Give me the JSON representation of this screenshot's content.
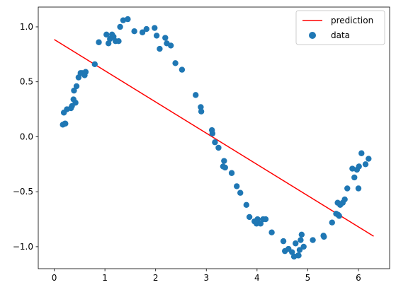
{
  "chart_data": {
    "type": "scatter",
    "title": "",
    "xlabel": "",
    "ylabel": "",
    "xlim": [
      -0.315,
      6.615
    ],
    "ylim": [
      -1.2,
      1.18
    ],
    "x_ticks": [
      0,
      1,
      2,
      3,
      4,
      5,
      6
    ],
    "x_tick_labels": [
      "0",
      "1",
      "2",
      "3",
      "4",
      "5",
      "6"
    ],
    "y_ticks": [
      1.0,
      0.5,
      0.0,
      -0.5,
      -1.0
    ],
    "y_tick_labels": [
      "1.0",
      "0.5",
      "0.0",
      "−0.5",
      "−1.0"
    ],
    "grid": false,
    "legend_position": "top-right",
    "series": [
      {
        "name": "prediction",
        "kind": "line",
        "color": "#ff0000",
        "x": [
          0.0,
          6.3
        ],
        "y": [
          0.885,
          -0.905
        ]
      },
      {
        "name": "data",
        "kind": "scatter",
        "color": "#1f77b4",
        "x": [
          0.17,
          0.19,
          0.21,
          0.22,
          0.25,
          0.33,
          0.35,
          0.38,
          0.39,
          0.42,
          0.44,
          0.48,
          0.52,
          0.55,
          0.6,
          0.62,
          0.8,
          0.88,
          1.03,
          1.07,
          1.1,
          1.14,
          1.17,
          1.21,
          1.27,
          1.3,
          1.36,
          1.45,
          1.58,
          1.74,
          1.82,
          1.98,
          2.02,
          2.08,
          2.19,
          2.22,
          2.3,
          2.39,
          2.52,
          2.79,
          2.89,
          2.9,
          3.11,
          3.12,
          3.17,
          3.24,
          3.33,
          3.35,
          3.37,
          3.5,
          3.6,
          3.67,
          3.79,
          3.85,
          3.95,
          3.99,
          4.01,
          4.07,
          4.12,
          4.17,
          4.29,
          4.52,
          4.55,
          4.62,
          4.69,
          4.73,
          4.76,
          4.81,
          4.82,
          4.84,
          4.86,
          4.88,
          4.92,
          5.1,
          5.31,
          5.32,
          5.48,
          5.56,
          5.59,
          5.6,
          5.62,
          5.64,
          5.69,
          5.73,
          5.78,
          5.88,
          5.92,
          5.97,
          6.0,
          6.01,
          6.06,
          6.14,
          6.2
        ],
        "y": [
          0.11,
          0.22,
          0.12,
          0.12,
          0.25,
          0.26,
          0.28,
          0.34,
          0.42,
          0.31,
          0.46,
          0.54,
          0.58,
          0.58,
          0.56,
          0.59,
          0.66,
          0.86,
          0.93,
          0.85,
          0.89,
          0.93,
          0.91,
          0.87,
          0.87,
          1.0,
          1.06,
          1.07,
          0.96,
          0.95,
          0.98,
          0.99,
          0.92,
          0.8,
          0.9,
          0.85,
          0.83,
          0.67,
          0.61,
          0.38,
          0.27,
          0.23,
          0.06,
          0.03,
          -0.05,
          -0.1,
          -0.27,
          -0.22,
          -0.28,
          -0.33,
          -0.45,
          -0.51,
          -0.62,
          -0.73,
          -0.77,
          -0.79,
          -0.75,
          -0.79,
          -0.75,
          -0.75,
          -0.87,
          -0.95,
          -1.04,
          -1.02,
          -1.05,
          -1.09,
          -0.97,
          -1.08,
          -1.08,
          -1.03,
          -0.94,
          -0.89,
          -1.0,
          -0.94,
          -0.9,
          -0.91,
          -0.78,
          -0.7,
          -0.6,
          -0.71,
          -0.72,
          -0.62,
          -0.6,
          -0.57,
          -0.47,
          -0.29,
          -0.37,
          -0.3,
          -0.47,
          -0.27,
          -0.15,
          -0.25,
          -0.2
        ]
      }
    ]
  }
}
